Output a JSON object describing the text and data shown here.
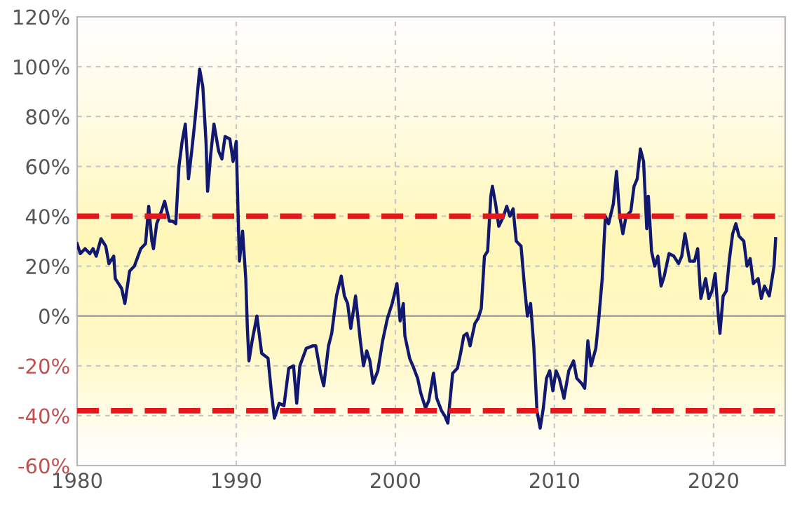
{
  "chart_data": {
    "type": "line",
    "xlim": [
      1980,
      2024.5
    ],
    "xticks": [
      1980,
      1990,
      2000,
      2010,
      2020
    ],
    "ylim": [
      -60,
      120
    ],
    "yticks": [
      {
        "value": -60,
        "label": "-60%"
      },
      {
        "value": -40,
        "label": "-40%"
      },
      {
        "value": -20,
        "label": "-20%"
      },
      {
        "value": 0,
        "label": "0%"
      },
      {
        "value": 20,
        "label": "20%"
      },
      {
        "value": 40,
        "label": "40%"
      },
      {
        "value": 60,
        "label": "60%"
      },
      {
        "value": 80,
        "label": "80%"
      },
      {
        "value": 100,
        "label": "100%"
      },
      {
        "value": 120,
        "label": "120%"
      }
    ],
    "grid": true,
    "marker": "none",
    "line_style": "solid",
    "series": [
      {
        "color": "#101870",
        "x": [
          1980.0,
          1980.2,
          1980.5,
          1980.8,
          1981.0,
          1981.2,
          1981.5,
          1981.8,
          1982.0,
          1982.3,
          1982.4,
          1982.8,
          1983.0,
          1983.3,
          1983.6,
          1984.0,
          1984.3,
          1984.5,
          1984.7,
          1984.8,
          1985.0,
          1985.3,
          1985.5,
          1985.8,
          1986.0,
          1986.2,
          1986.4,
          1986.6,
          1986.8,
          1987.0,
          1987.2,
          1987.4,
          1987.7,
          1987.9,
          1988.1,
          1988.2,
          1988.4,
          1988.6,
          1988.9,
          1989.1,
          1989.3,
          1989.6,
          1989.8,
          1990.0,
          1990.1,
          1990.2,
          1990.4,
          1990.6,
          1990.7,
          1990.8,
          1991.0,
          1991.3,
          1991.6,
          1992.0,
          1992.2,
          1992.4,
          1992.7,
          1993.0,
          1993.3,
          1993.6,
          1993.8,
          1994.0,
          1994.4,
          1994.8,
          1995.0,
          1995.3,
          1995.5,
          1995.8,
          1996.0,
          1996.3,
          1996.6,
          1996.8,
          1997.0,
          1997.2,
          1997.5,
          1997.8,
          1998.0,
          1998.2,
          1998.4,
          1998.6,
          1998.9,
          1999.2,
          1999.5,
          1999.8,
          2000.1,
          2000.3,
          2000.5,
          2000.6,
          2000.9,
          2001.1,
          2001.4,
          2001.6,
          2001.9,
          2002.1,
          2002.4,
          2002.6,
          2002.9,
          2003.1,
          2003.3,
          2003.6,
          2003.9,
          2004.1,
          2004.3,
          2004.5,
          2004.7,
          2005.0,
          2005.2,
          2005.4,
          2005.6,
          2005.8,
          2006.0,
          2006.1,
          2006.3,
          2006.5,
          2006.8,
          2007.0,
          2007.2,
          2007.4,
          2007.6,
          2007.9,
          2008.1,
          2008.3,
          2008.5,
          2008.7,
          2008.9,
          2009.1,
          2009.3,
          2009.5,
          2009.7,
          2009.9,
          2010.1,
          2010.3,
          2010.6,
          2010.9,
          2011.2,
          2011.4,
          2011.7,
          2011.9,
          2012.1,
          2012.3,
          2012.6,
          2012.8,
          2013.0,
          2013.2,
          2013.4,
          2013.7,
          2013.9,
          2014.1,
          2014.3,
          2014.5,
          2014.8,
          2015.0,
          2015.2,
          2015.4,
          2015.6,
          2015.8,
          2015.9,
          2016.1,
          2016.3,
          2016.5,
          2016.7,
          2016.9,
          2017.2,
          2017.5,
          2017.8,
          2018.0,
          2018.2,
          2018.5,
          2018.8,
          2019.0,
          2019.2,
          2019.5,
          2019.7,
          2019.9,
          2020.1,
          2020.3,
          2020.4,
          2020.6,
          2020.8,
          2021.0,
          2021.2,
          2021.4,
          2021.6,
          2021.9,
          2022.1,
          2022.3,
          2022.5,
          2022.8,
          2023.0,
          2023.2,
          2023.5,
          2023.8,
          2023.9
        ],
        "values": [
          29,
          25,
          27,
          25,
          27,
          24,
          31,
          28,
          21,
          24,
          15,
          11,
          5,
          18,
          20,
          27,
          29,
          44,
          30,
          27,
          37,
          42,
          46,
          38,
          38,
          37,
          60,
          70,
          77,
          55,
          66,
          78,
          99,
          92,
          70,
          50,
          65,
          77,
          66,
          63,
          72,
          71,
          62,
          70,
          45,
          22,
          34,
          15,
          -5,
          -18,
          -10,
          0,
          -15,
          -17,
          -30,
          -41,
          -35,
          -36,
          -21,
          -20,
          -35,
          -20,
          -13,
          -12,
          -12,
          -23,
          -28,
          -12,
          -7,
          8,
          16,
          8,
          5,
          -5,
          8,
          -10,
          -20,
          -14,
          -18,
          -27,
          -22,
          -10,
          -1,
          5,
          13,
          -2,
          5,
          -8,
          -17,
          -20,
          -25,
          -31,
          -37,
          -34,
          -23,
          -33,
          -38,
          -40,
          -43,
          -23,
          -21,
          -15,
          -8,
          -7,
          -12,
          -3,
          -1,
          3,
          24,
          26,
          48,
          52,
          45,
          36,
          40,
          44,
          40,
          43,
          30,
          28,
          13,
          0,
          5,
          -12,
          -38,
          -45,
          -37,
          -25,
          -22,
          -30,
          -22,
          -25,
          -33,
          -22,
          -18,
          -25,
          -27,
          -29,
          -10,
          -20,
          -13,
          0,
          15,
          40,
          37,
          45,
          58,
          40,
          33,
          40,
          42,
          52,
          55,
          67,
          62,
          35,
          48,
          26,
          20,
          24,
          12,
          16,
          25,
          24,
          21,
          24,
          33,
          22,
          22,
          27,
          7,
          15,
          7,
          10,
          17,
          0,
          -7,
          8,
          10,
          23,
          33,
          37,
          32,
          30,
          20,
          23,
          13,
          15,
          7,
          12,
          8,
          20,
          31
        ]
      }
    ],
    "ref_lines": [
      {
        "axis": "y",
        "value": 0,
        "color": "#a8a8a8",
        "line_style": "solid"
      },
      {
        "axis": "y",
        "value": 40,
        "color": "#e8161b",
        "line_style": "dashed"
      },
      {
        "axis": "y",
        "value": -38,
        "color": "#e8161b",
        "line_style": "dashed"
      }
    ]
  }
}
